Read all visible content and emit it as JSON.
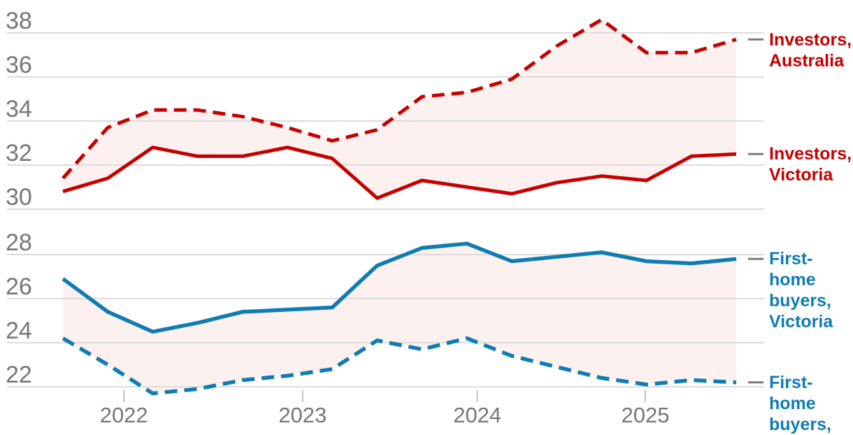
{
  "chart_data": {
    "type": "line",
    "categories": [
      "Sep 2021",
      "Dec 2021",
      "Mar 2022",
      "Jun 2022",
      "Sep 2022",
      "Dec 2022",
      "Mar 2023",
      "Jun 2023",
      "Sep 2023",
      "Dec 2023",
      "Mar 2024",
      "Jun 2024",
      "Sep 2024",
      "Dec 2024",
      "Mar 2025",
      "Jun 2025"
    ],
    "xticklabels": [
      "2022",
      "2023",
      "2024",
      "2025"
    ],
    "grid": true,
    "legend_position": "right",
    "fill_between_color": "#fcf1ee",
    "gridline_color": "#dcdcdc",
    "axis_text_color": "#767676",
    "panels": [
      {
        "id": "investors",
        "yticks": [
          38,
          36,
          34,
          32,
          30
        ],
        "ylim": [
          29.9,
          38.9
        ],
        "series": [
          {
            "name": "Investors, Australia",
            "style": "dashed",
            "color": "#c70000",
            "values": [
              31.4,
              33.7,
              34.5,
              34.5,
              34.2,
              33.7,
              33.1,
              33.6,
              35.1,
              35.3,
              35.9,
              37.4,
              38.6,
              37.1,
              37.1,
              37.7
            ]
          },
          {
            "name": "Investors, Victoria",
            "style": "solid",
            "color": "#c70000",
            "values": [
              30.8,
              31.4,
              32.8,
              32.4,
              32.4,
              32.8,
              32.3,
              30.5,
              31.3,
              31.0,
              30.7,
              31.2,
              31.5,
              31.3,
              32.4,
              32.5
            ]
          }
        ]
      },
      {
        "id": "first-home-buyers",
        "yticks": [
          28,
          26,
          24,
          22
        ],
        "ylim": [
          21.5,
          28.9
        ],
        "series": [
          {
            "name": "First-home buyers, Victoria",
            "style": "solid",
            "color": "#0f7cb4",
            "values": [
              26.9,
              25.4,
              24.5,
              24.9,
              25.4,
              25.5,
              25.6,
              27.5,
              28.3,
              28.5,
              27.7,
              27.9,
              28.1,
              27.7,
              27.6,
              27.8
            ]
          },
          {
            "name": "First-home buyers, Australia",
            "style": "dashed",
            "color": "#0f7cb4",
            "values": [
              24.2,
              23.0,
              21.7,
              21.9,
              22.3,
              22.5,
              22.8,
              24.1,
              23.7,
              24.2,
              23.4,
              22.9,
              22.4,
              22.1,
              22.3,
              22.2
            ]
          }
        ]
      }
    ]
  },
  "legend": {
    "investors_australia": "Investors,\nAustralia",
    "investors_victoria": "Investors,\nVictoria",
    "fhb_victoria": "First-\nhome\nbuyers,\nVictoria",
    "fhb_australia": "First-\nhome\nbuyers,\nAustralia"
  }
}
